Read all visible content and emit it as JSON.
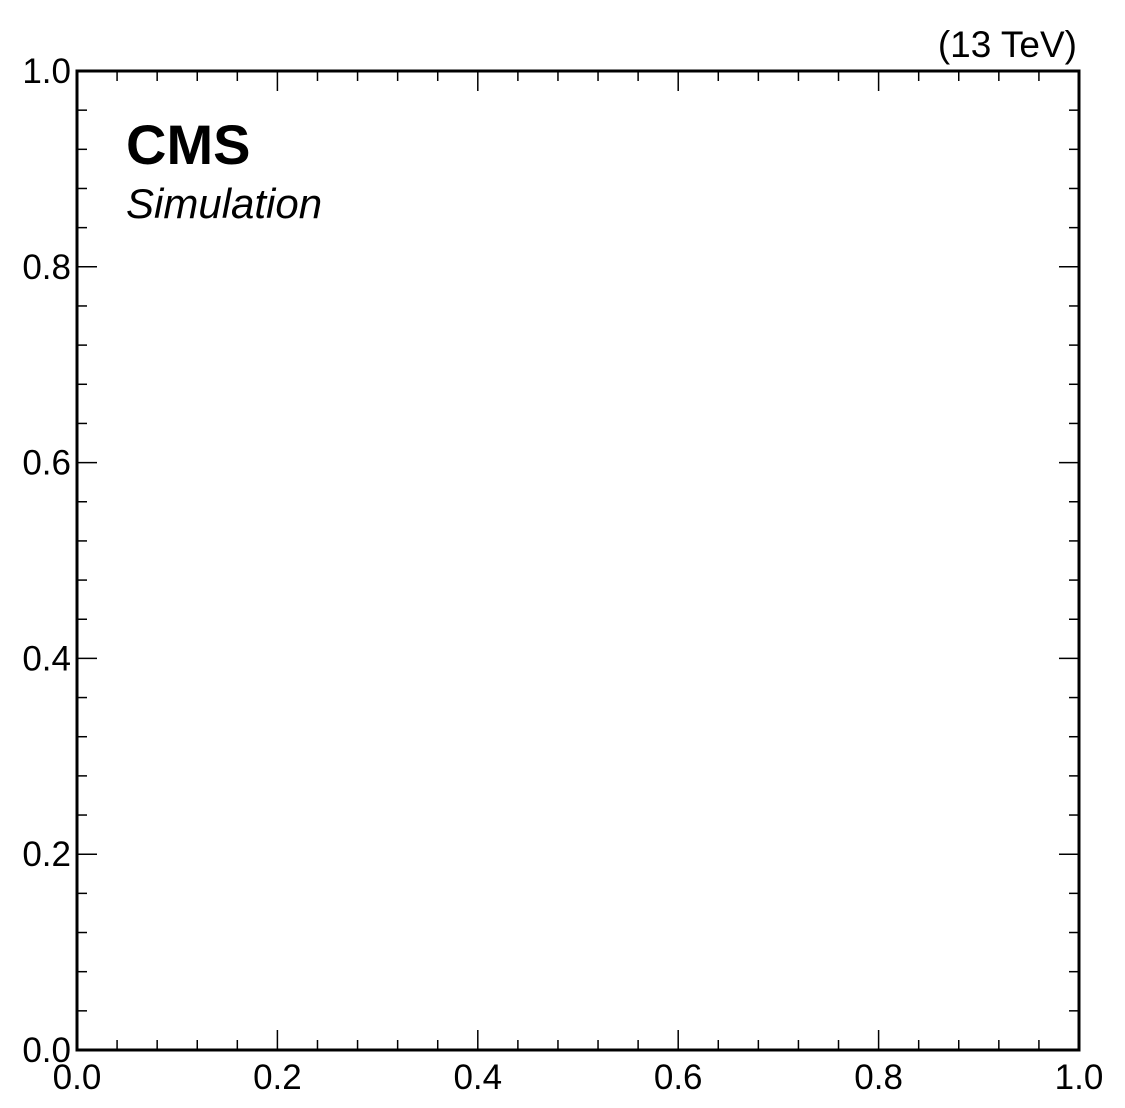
{
  "chart_data": {
    "type": "scatter",
    "title": "",
    "xlabel": "",
    "ylabel": "",
    "xlim": [
      0.0,
      1.0
    ],
    "ylim": [
      0.0,
      1.0
    ],
    "x_ticks": [
      0.0,
      0.2,
      0.4,
      0.6,
      0.8,
      1.0
    ],
    "y_ticks": [
      0.0,
      0.2,
      0.4,
      0.6,
      0.8,
      1.0
    ],
    "x_tick_labels": [
      "0.0",
      "0.2",
      "0.4",
      "0.6",
      "0.8",
      "1.0"
    ],
    "y_tick_labels": [
      "0.0",
      "0.2",
      "0.4",
      "0.6",
      "0.8",
      "1.0"
    ],
    "minor_ticks_per_major": 4,
    "series": [],
    "grid": false,
    "experiment_label": "CMS",
    "experiment_sublabel": "Simulation",
    "energy_label": "(13 TeV)"
  }
}
